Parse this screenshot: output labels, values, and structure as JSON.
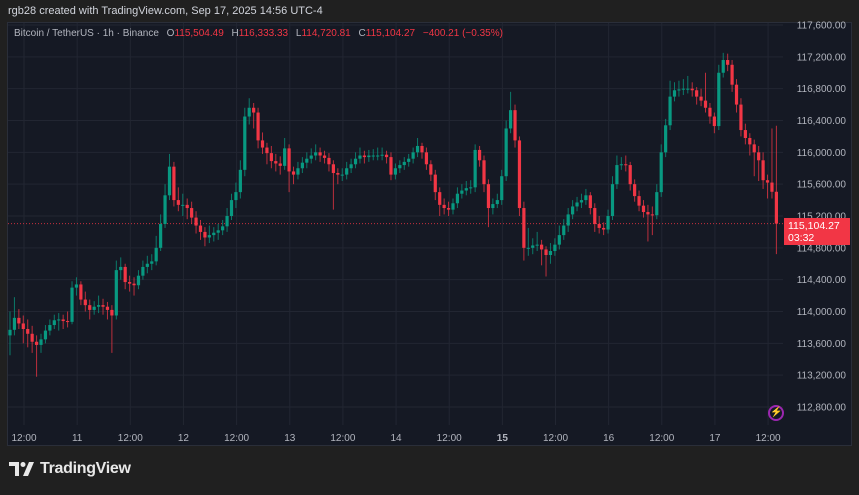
{
  "header": {
    "credit": "rgb28 created with TradingView.com, Sep 17, 2025 14:56 UTC-4"
  },
  "legend": {
    "symbol": "Bitcoin / TetherUS · 1h · Binance",
    "o_label": "O",
    "o": "115,504.49",
    "h_label": "H",
    "h": "116,333.33",
    "l_label": "L",
    "l": "114,720.81",
    "c_label": "C",
    "c": "115,104.27",
    "change": "−400.21 (−0.35%)"
  },
  "last_price": {
    "price": "115,104.27",
    "countdown": "03:32"
  },
  "footer": {
    "brand": "TradingView"
  },
  "icons": {
    "alert": "lightning-icon",
    "logo": "tradingview-logo-icon"
  },
  "colors": {
    "up": "#089981",
    "down": "#f23645",
    "background": "#151924"
  },
  "chart_data": {
    "type": "candlestick",
    "symbol": "Bitcoin / TetherUS",
    "interval": "1h",
    "exchange": "Binance",
    "ylim": [
      112600,
      117750
    ],
    "grid": true,
    "y_ticks": [
      "117,600.00",
      "117,200.00",
      "116,800.00",
      "116,400.00",
      "116,000.00",
      "115,600.00",
      "115,200.00",
      "114,800.00",
      "114,400.00",
      "114,000.00",
      "113,600.00",
      "113,200.00",
      "112,800.00"
    ],
    "y_tick_values": [
      117600,
      117200,
      116800,
      116400,
      116000,
      115600,
      115200,
      114800,
      114400,
      114000,
      113600,
      113200,
      112800
    ],
    "x_ticks": [
      {
        "label": "12:00",
        "bold": false
      },
      {
        "label": "11",
        "bold": false
      },
      {
        "label": "12:00",
        "bold": false
      },
      {
        "label": "12",
        "bold": false
      },
      {
        "label": "12:00",
        "bold": false
      },
      {
        "label": "13",
        "bold": false
      },
      {
        "label": "12:00",
        "bold": false
      },
      {
        "label": "14",
        "bold": false
      },
      {
        "label": "12:00",
        "bold": false
      },
      {
        "label": "15",
        "bold": true
      },
      {
        "label": "12:00",
        "bold": false
      },
      {
        "label": "16",
        "bold": false
      },
      {
        "label": "12:00",
        "bold": false
      },
      {
        "label": "17",
        "bold": false
      },
      {
        "label": "12:00",
        "bold": false
      }
    ],
    "first_candle_time": "Sep 10 09:00",
    "last_close": 115104.27,
    "candles_ohlc": [
      [
        113700,
        114000,
        113450,
        113770
      ],
      [
        113770,
        114180,
        113700,
        113920
      ],
      [
        113920,
        114030,
        113780,
        113850
      ],
      [
        113850,
        113950,
        113600,
        113780
      ],
      [
        113780,
        113900,
        113550,
        113720
      ],
      [
        113720,
        113820,
        113480,
        113620
      ],
      [
        113620,
        113700,
        113180,
        113580
      ],
      [
        113580,
        113720,
        113480,
        113650
      ],
      [
        113650,
        113830,
        113600,
        113760
      ],
      [
        113760,
        113900,
        113700,
        113830
      ],
      [
        113830,
        113960,
        113780,
        113890
      ],
      [
        113890,
        113980,
        113760,
        113900
      ],
      [
        113900,
        113960,
        113780,
        113880
      ],
      [
        113880,
        114000,
        113800,
        113870
      ],
      [
        113870,
        114380,
        113840,
        114300
      ],
      [
        114300,
        114430,
        114200,
        114340
      ],
      [
        114340,
        114380,
        114080,
        114150
      ],
      [
        114150,
        114250,
        114000,
        114080
      ],
      [
        114080,
        114150,
        113900,
        114020
      ],
      [
        114020,
        114130,
        113960,
        114060
      ],
      [
        114060,
        114200,
        113980,
        114080
      ],
      [
        114080,
        114160,
        113960,
        114060
      ],
      [
        114060,
        114120,
        113900,
        114020
      ],
      [
        114020,
        114080,
        113480,
        113950
      ],
      [
        113950,
        114640,
        113900,
        114520
      ],
      [
        114520,
        114680,
        114400,
        114560
      ],
      [
        114560,
        114600,
        114280,
        114370
      ],
      [
        114370,
        114450,
        114250,
        114350
      ],
      [
        114350,
        114430,
        114200,
        114330
      ],
      [
        114330,
        114520,
        114280,
        114450
      ],
      [
        114450,
        114640,
        114400,
        114560
      ],
      [
        114560,
        114700,
        114480,
        114600
      ],
      [
        114600,
        114720,
        114520,
        114630
      ],
      [
        114630,
        114950,
        114580,
        114800
      ],
      [
        114800,
        115220,
        114760,
        115100
      ],
      [
        115100,
        115600,
        115050,
        115460
      ],
      [
        115460,
        115980,
        115400,
        115820
      ],
      [
        115820,
        115880,
        115320,
        115400
      ],
      [
        115400,
        115560,
        115260,
        115340
      ],
      [
        115340,
        115480,
        115200,
        115340
      ],
      [
        115340,
        115420,
        115160,
        115300
      ],
      [
        115300,
        115380,
        115100,
        115180
      ],
      [
        115180,
        115260,
        114980,
        115080
      ],
      [
        115080,
        115150,
        114900,
        115000
      ],
      [
        115000,
        115060,
        114820,
        114930
      ],
      [
        114930,
        115080,
        114860,
        114960
      ],
      [
        114960,
        115060,
        114880,
        114990
      ],
      [
        114990,
        115100,
        114900,
        115020
      ],
      [
        115020,
        115150,
        114960,
        115070
      ],
      [
        115070,
        115300,
        115000,
        115200
      ],
      [
        115200,
        115480,
        115150,
        115400
      ],
      [
        115400,
        115620,
        115300,
        115500
      ],
      [
        115500,
        115900,
        115420,
        115780
      ],
      [
        115780,
        116560,
        115700,
        116450
      ],
      [
        116450,
        116680,
        116350,
        116560
      ],
      [
        116560,
        116620,
        116300,
        116500
      ],
      [
        116500,
        116560,
        116050,
        116150
      ],
      [
        116150,
        116250,
        115980,
        116060
      ],
      [
        116060,
        116120,
        115850,
        115990
      ],
      [
        115990,
        116080,
        115800,
        115890
      ],
      [
        115890,
        115980,
        115760,
        115860
      ],
      [
        115860,
        115950,
        115720,
        115830
      ],
      [
        115830,
        116180,
        115780,
        116050
      ],
      [
        116050,
        116100,
        115500,
        115760
      ],
      [
        115760,
        115820,
        115600,
        115720
      ],
      [
        115720,
        115880,
        115660,
        115800
      ],
      [
        115800,
        115940,
        115740,
        115870
      ],
      [
        115870,
        116000,
        115800,
        115920
      ],
      [
        115920,
        116050,
        115860,
        115960
      ],
      [
        115960,
        116100,
        115900,
        116000
      ],
      [
        116000,
        116060,
        115880,
        115960
      ],
      [
        115960,
        116020,
        115860,
        115930
      ],
      [
        115930,
        115990,
        115760,
        115850
      ],
      [
        115850,
        115900,
        115280,
        115740
      ],
      [
        115740,
        115800,
        115600,
        115720
      ],
      [
        115720,
        115800,
        115640,
        115720
      ],
      [
        115720,
        115880,
        115660,
        115800
      ],
      [
        115800,
        115920,
        115740,
        115850
      ],
      [
        115850,
        116000,
        115800,
        115920
      ],
      [
        115920,
        116060,
        115860,
        115960
      ],
      [
        115960,
        116020,
        115860,
        115940
      ],
      [
        115940,
        116030,
        115880,
        115960
      ],
      [
        115960,
        116040,
        115900,
        115960
      ],
      [
        115960,
        116060,
        115900,
        115960
      ],
      [
        115960,
        116060,
        115900,
        115970
      ],
      [
        115970,
        116020,
        115860,
        115940
      ],
      [
        115940,
        116000,
        115650,
        115720
      ],
      [
        115720,
        115860,
        115660,
        115800
      ],
      [
        115800,
        115900,
        115740,
        115840
      ],
      [
        115840,
        115940,
        115780,
        115880
      ],
      [
        115880,
        115980,
        115820,
        115920
      ],
      [
        115920,
        116060,
        115860,
        116000
      ],
      [
        116000,
        116180,
        115940,
        116080
      ],
      [
        116080,
        116120,
        115920,
        116000
      ],
      [
        116000,
        116060,
        115780,
        115850
      ],
      [
        115850,
        115900,
        115640,
        115720
      ],
      [
        115720,
        115780,
        115400,
        115500
      ],
      [
        115500,
        115560,
        115200,
        115340
      ],
      [
        115340,
        115420,
        115220,
        115300
      ],
      [
        115300,
        115380,
        115200,
        115280
      ],
      [
        115280,
        115420,
        115220,
        115360
      ],
      [
        115360,
        115560,
        115300,
        115480
      ],
      [
        115480,
        115600,
        115420,
        115520
      ],
      [
        115520,
        115640,
        115460,
        115550
      ],
      [
        115550,
        115650,
        115480,
        115560
      ],
      [
        115560,
        116100,
        115500,
        116030
      ],
      [
        116030,
        116080,
        115820,
        115900
      ],
      [
        115900,
        115960,
        115500,
        115600
      ],
      [
        115600,
        115660,
        115060,
        115300
      ],
      [
        115300,
        115420,
        115220,
        115350
      ],
      [
        115350,
        115480,
        115300,
        115400
      ],
      [
        115400,
        115780,
        115340,
        115700
      ],
      [
        115700,
        116400,
        115640,
        116300
      ],
      [
        116300,
        116760,
        116240,
        116530
      ],
      [
        116530,
        116600,
        116060,
        116150
      ],
      [
        116150,
        116200,
        115200,
        115300
      ],
      [
        115300,
        115380,
        114640,
        114800
      ],
      [
        114800,
        115050,
        114700,
        114800
      ],
      [
        114800,
        114920,
        114720,
        114830
      ],
      [
        114830,
        115000,
        114760,
        114840
      ],
      [
        114840,
        114900,
        114580,
        114780
      ],
      [
        114780,
        114820,
        114440,
        114710
      ],
      [
        114710,
        114860,
        114600,
        114760
      ],
      [
        114760,
        114920,
        114700,
        114840
      ],
      [
        114840,
        115080,
        114780,
        114960
      ],
      [
        114960,
        115160,
        114900,
        115080
      ],
      [
        115080,
        115300,
        115000,
        115220
      ],
      [
        115220,
        115400,
        115160,
        115320
      ],
      [
        115320,
        115440,
        115260,
        115370
      ],
      [
        115370,
        115480,
        115300,
        115400
      ],
      [
        115400,
        115540,
        115340,
        115460
      ],
      [
        115460,
        115500,
        115220,
        115300
      ],
      [
        115300,
        115360,
        115000,
        115100
      ],
      [
        115100,
        115200,
        114980,
        115050
      ],
      [
        115050,
        115120,
        114960,
        115030
      ],
      [
        115030,
        115280,
        114980,
        115200
      ],
      [
        115200,
        115700,
        115150,
        115600
      ],
      [
        115600,
        115960,
        115540,
        115840
      ],
      [
        115840,
        115940,
        115780,
        115850
      ],
      [
        115850,
        115960,
        115760,
        115840
      ],
      [
        115840,
        115880,
        115520,
        115600
      ],
      [
        115600,
        115660,
        115380,
        115450
      ],
      [
        115450,
        115520,
        115260,
        115330
      ],
      [
        115330,
        115400,
        115180,
        115250
      ],
      [
        115250,
        115340,
        114880,
        115220
      ],
      [
        115220,
        115320,
        114960,
        115210
      ],
      [
        115210,
        115600,
        115160,
        115500
      ],
      [
        115500,
        116100,
        115440,
        116000
      ],
      [
        116000,
        116420,
        115940,
        116340
      ],
      [
        116340,
        116900,
        116280,
        116700
      ],
      [
        116700,
        116880,
        116640,
        116780
      ],
      [
        116780,
        116900,
        116700,
        116790
      ],
      [
        116790,
        116920,
        116720,
        116800
      ],
      [
        116800,
        116960,
        116740,
        116800
      ],
      [
        116800,
        116880,
        116700,
        116780
      ],
      [
        116780,
        116820,
        116600,
        116700
      ],
      [
        116700,
        116800,
        116580,
        116650
      ],
      [
        116650,
        117000,
        116500,
        116560
      ],
      [
        116560,
        116620,
        116360,
        116450
      ],
      [
        116450,
        116500,
        116240,
        116330
      ],
      [
        116330,
        117100,
        116280,
        117000
      ],
      [
        117000,
        117250,
        116940,
        117160
      ],
      [
        117160,
        117240,
        117020,
        117100
      ],
      [
        117100,
        117160,
        116760,
        116850
      ],
      [
        116850,
        116920,
        116500,
        116600
      ],
      [
        116600,
        116680,
        116200,
        116280
      ],
      [
        116280,
        116360,
        116100,
        116180
      ],
      [
        116180,
        116240,
        115960,
        116100
      ],
      [
        116100,
        116160,
        115700,
        116000
      ],
      [
        116000,
        116080,
        115640,
        115900
      ],
      [
        115900,
        116000,
        115540,
        115650
      ],
      [
        115650,
        115720,
        115420,
        115620
      ],
      [
        115620,
        116300,
        115420,
        115504.49
      ],
      [
        115504.49,
        116333.33,
        114720.81,
        115104.27
      ]
    ]
  }
}
